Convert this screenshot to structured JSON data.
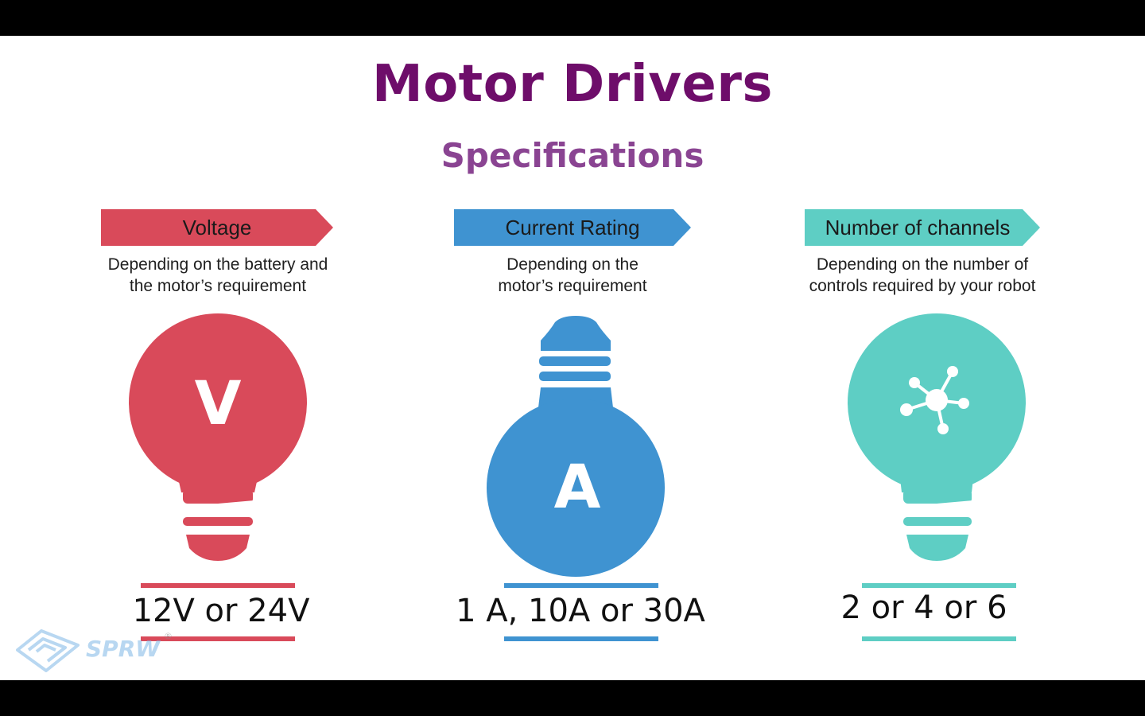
{
  "slide": {
    "title": "Motor Drivers",
    "subtitle": "Specifications"
  },
  "specs": [
    {
      "label": "Voltage",
      "description": [
        "Depending on the battery and",
        "the motor’s requirement"
      ],
      "icon": "V",
      "value": "12V or 24V",
      "color": "#d94a5a"
    },
    {
      "label": "Current Rating",
      "description": [
        "Depending on the",
        "motor’s requirement"
      ],
      "icon": "A",
      "value": "1 A, 10A or 30A",
      "color": "#3f93d1"
    },
    {
      "label": "Number of channels",
      "description": [
        "Depending on the number of",
        "controls required by your robot"
      ],
      "icon": "network-hub-icon",
      "value": "2 or 4 or 6",
      "color": "#5ecec4"
    }
  ],
  "watermark": {
    "text": "SPRW",
    "mark": "®"
  }
}
